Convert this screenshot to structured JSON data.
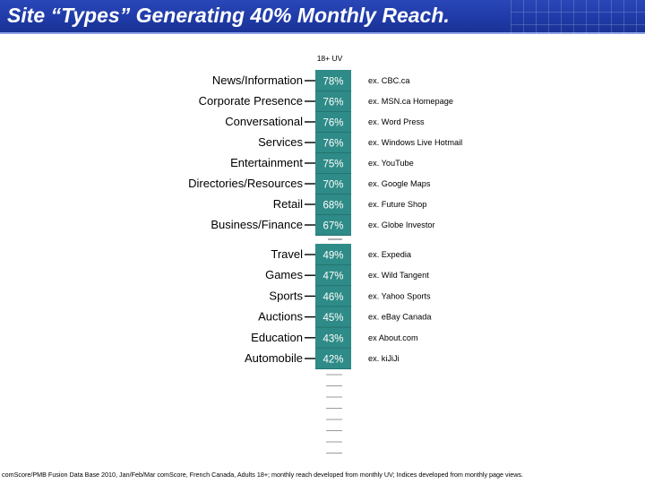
{
  "slide": {
    "title": "Site “Types” Generating 40% Monthly Reach.",
    "footer": "comScore/PMB Fusion Data Base 2010, Jan/Feb/Mar comScore, French Canada, Adults 18+; monthly reach developed from monthly UV; Indices developed from monthly page views."
  },
  "colors": {
    "title_bar": "#1f3aa6",
    "bar_fill": "#2e8b87",
    "dashes": "#9a9a9a"
  },
  "chart_data": {
    "type": "table",
    "column_header": "18+ UV",
    "categories": [
      "News/Information",
      "Corporate Presence",
      "Conversational",
      "Services",
      "Entertainment",
      "Directories/Resources",
      "Retail",
      "Business/Finance",
      "Travel",
      "Games",
      "Sports",
      "Auctions",
      "Education",
      "Automobile"
    ],
    "values": [
      78,
      76,
      76,
      76,
      75,
      70,
      68,
      67,
      49,
      47,
      46,
      45,
      43,
      42
    ],
    "value_labels": [
      "78%",
      "76%",
      "76%",
      "76%",
      "75%",
      "70%",
      "68%",
      "67%",
      "49%",
      "47%",
      "46%",
      "45%",
      "43%",
      "42%"
    ],
    "examples": [
      "ex. CBC.ca",
      "ex. MSN.ca Homepage",
      "ex. Word Press",
      "ex. Windows Live Hotmail",
      "ex. YouTube",
      "ex. Google Maps",
      "ex. Future Shop",
      "ex. Globe Investor",
      "ex. Expedia",
      "ex. Wild Tangent",
      "ex. Yahoo Sports",
      "ex. eBay Canada",
      "ex About.com",
      "ex. kiJiJi"
    ]
  }
}
